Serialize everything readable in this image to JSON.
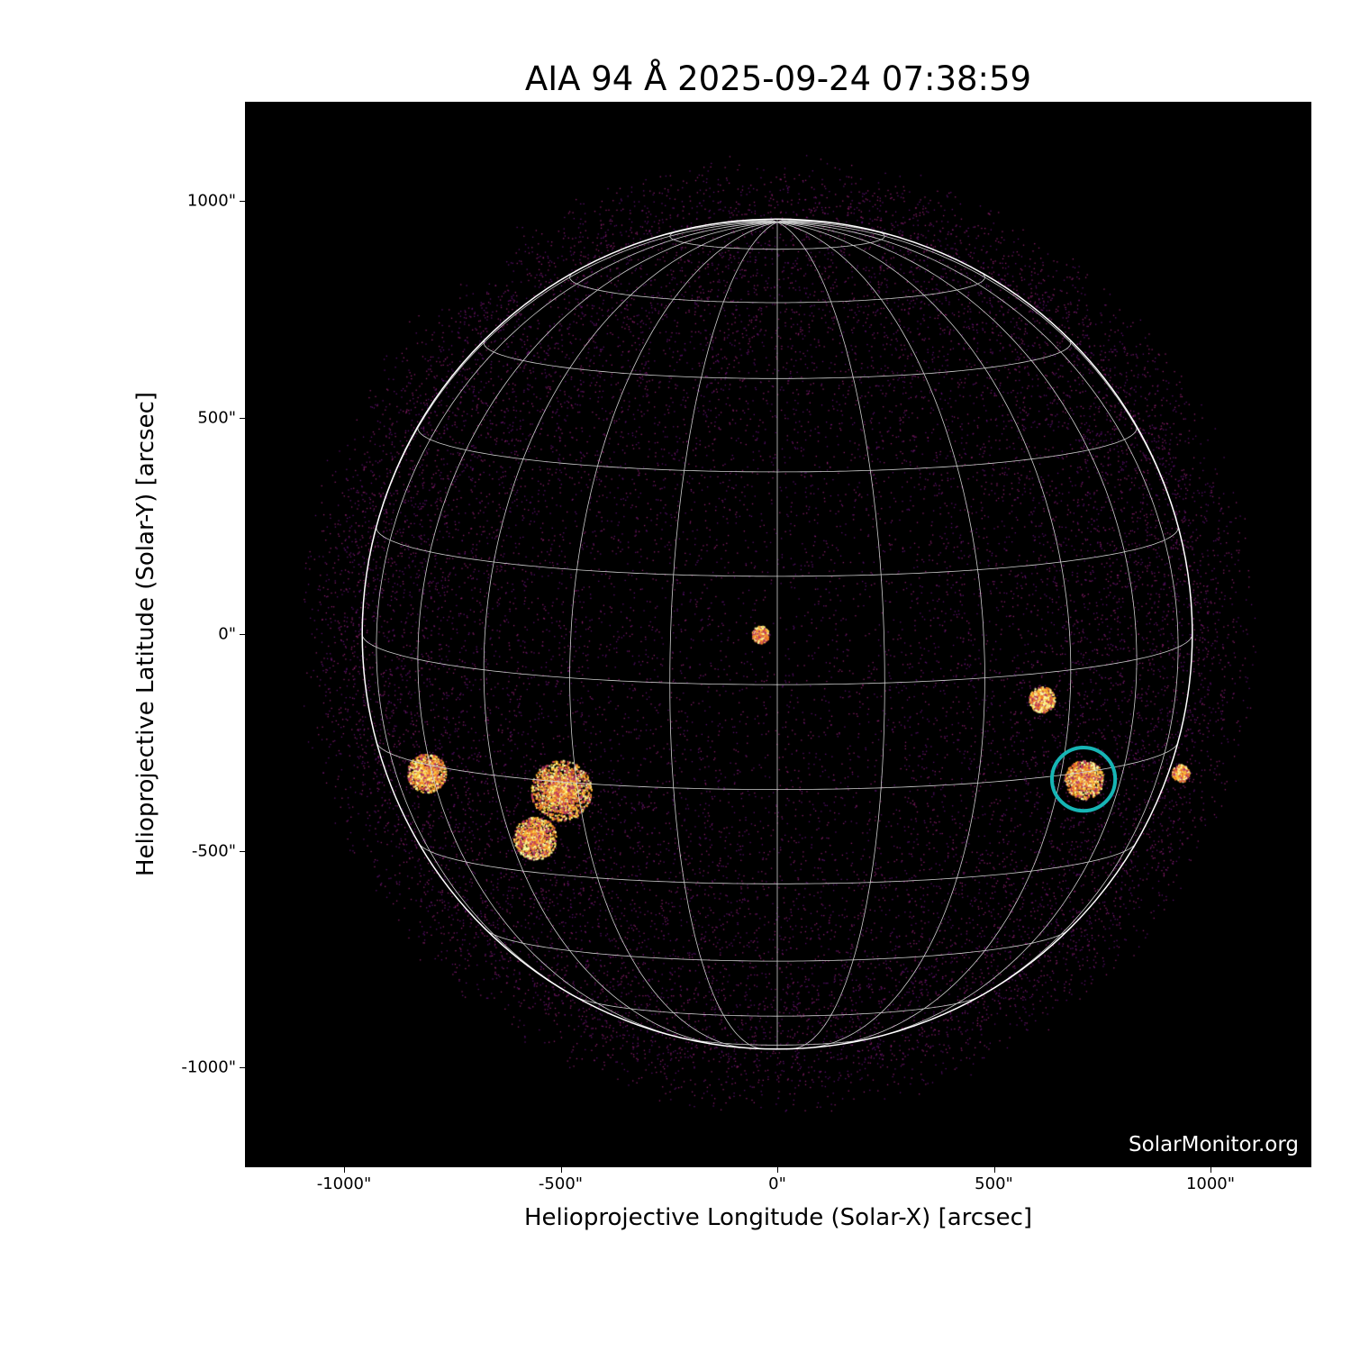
{
  "title": "AIA 94 Å 2025-09-24 07:38:59",
  "x_axis": {
    "label": "Helioprojective Longitude (Solar-X) [arcsec]",
    "ticks": [
      "-1000\"",
      "-500\"",
      "0\"",
      "500\"",
      "1000\""
    ],
    "tick_values": [
      -1000,
      -500,
      0,
      500,
      1000
    ],
    "range": [
      -1229,
      1233
    ]
  },
  "y_axis": {
    "label": "Helioprojective Latitude (Solar-Y) [arcsec]",
    "ticks": [
      "1000\"",
      "500\"",
      "0\"",
      "-500\"",
      "-1000\""
    ],
    "tick_values": [
      1000,
      500,
      0,
      -500,
      -1000
    ],
    "range": [
      -1229,
      1229
    ]
  },
  "solar_radius_arcsec": 958,
  "grid_spacing_deg": 15,
  "highlight": {
    "x_arcsec": 707,
    "y_arcsec": -335,
    "radius_arcsec": 73,
    "color": "#17b5b5"
  },
  "colormap": "inferno",
  "watermark": "SolarMonitor.org"
}
